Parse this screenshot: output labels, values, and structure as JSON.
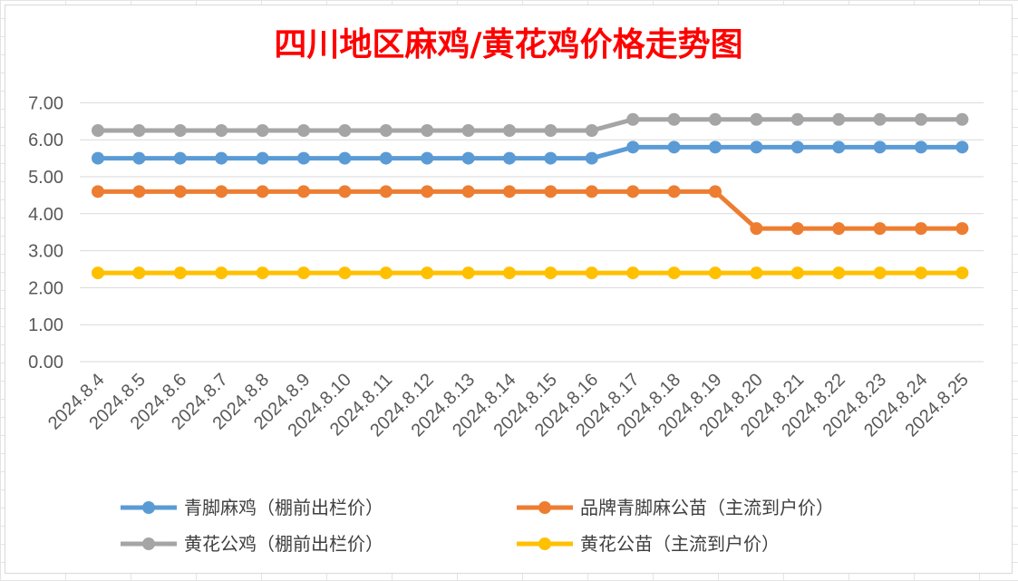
{
  "chart_data": {
    "type": "line",
    "title": "四川地区麻鸡/黄花鸡价格走势图",
    "categories": [
      "2024.8.4",
      "2024.8.5",
      "2024.8.6",
      "2024.8.7",
      "2024.8.8",
      "2024.8.9",
      "2024.8.10",
      "2024.8.11",
      "2024.8.12",
      "2024.8.13",
      "2024.8.14",
      "2024.8.15",
      "2024.8.16",
      "2024.8.17",
      "2024.8.18",
      "2024.8.19",
      "2024.8.20",
      "2024.8.21",
      "2024.8.22",
      "2024.8.23",
      "2024.8.24",
      "2024.8.25"
    ],
    "yticks": [
      "0.00",
      "1.00",
      "2.00",
      "3.00",
      "4.00",
      "5.00",
      "6.00",
      "7.00"
    ],
    "ylim": [
      0,
      7
    ],
    "grid": true,
    "legend_position": "bottom",
    "series": [
      {
        "name": "青脚麻鸡（棚前出栏价）",
        "color": "#5b9bd5",
        "values": [
          5.5,
          5.5,
          5.5,
          5.5,
          5.5,
          5.5,
          5.5,
          5.5,
          5.5,
          5.5,
          5.5,
          5.5,
          5.5,
          5.8,
          5.8,
          5.8,
          5.8,
          5.8,
          5.8,
          5.8,
          5.8,
          5.8
        ]
      },
      {
        "name": "品牌青脚麻公苗（主流到户价）",
        "color": "#ed7d31",
        "values": [
          4.6,
          4.6,
          4.6,
          4.6,
          4.6,
          4.6,
          4.6,
          4.6,
          4.6,
          4.6,
          4.6,
          4.6,
          4.6,
          4.6,
          4.6,
          4.6,
          3.6,
          3.6,
          3.6,
          3.6,
          3.6,
          3.6
        ]
      },
      {
        "name": "黄花公鸡（棚前出栏价）",
        "color": "#a5a5a5",
        "values": [
          6.25,
          6.25,
          6.25,
          6.25,
          6.25,
          6.25,
          6.25,
          6.25,
          6.25,
          6.25,
          6.25,
          6.25,
          6.25,
          6.55,
          6.55,
          6.55,
          6.55,
          6.55,
          6.55,
          6.55,
          6.55,
          6.55
        ]
      },
      {
        "name": "黄花公苗（主流到户价）",
        "color": "#ffc000",
        "values": [
          2.4,
          2.4,
          2.4,
          2.4,
          2.4,
          2.4,
          2.4,
          2.4,
          2.4,
          2.4,
          2.4,
          2.4,
          2.4,
          2.4,
          2.4,
          2.4,
          2.4,
          2.4,
          2.4,
          2.4,
          2.4,
          2.4
        ]
      }
    ]
  }
}
